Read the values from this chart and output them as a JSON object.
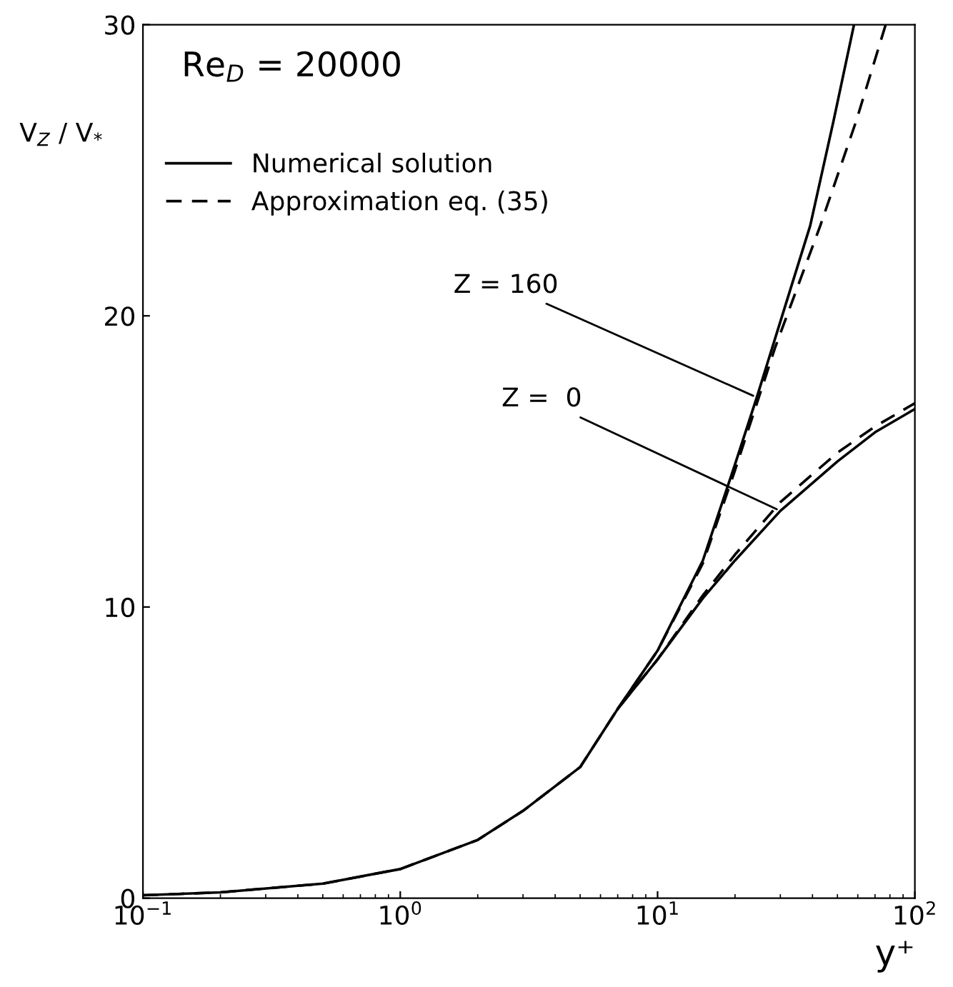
{
  "chart_data": {
    "type": "line",
    "log": "x",
    "xlim": [
      0.1,
      100
    ],
    "ylim": [
      0,
      30
    ],
    "xticks": [
      {
        "value": 0.1,
        "label": "10$^{−1}$"
      },
      {
        "value": 1,
        "label": "10$^{0}$"
      },
      {
        "value": 10,
        "label": "10$^{1}$"
      },
      {
        "value": 100,
        "label": "10$^{2}$"
      }
    ],
    "yticks": [
      0,
      10,
      20,
      30
    ],
    "xlabel": "y⁺",
    "ylabel": "V$_{Z}$ / V$_{*}$",
    "grid": false,
    "legend": "top left",
    "series": [
      {
        "name": "Numerical solution",
        "color": "#000000",
        "line_style": "solid",
        "x": [
          0.1,
          0.2,
          0.5,
          1,
          2,
          3,
          5,
          7,
          10,
          15,
          20,
          30,
          50,
          70,
          100
        ],
        "values": [
          0.1,
          0.2,
          0.5,
          1.0,
          2.0,
          3.0,
          4.5,
          6.5,
          8.2,
          10.3,
          11.6,
          13.3,
          15.0,
          16.0,
          16.8
        ]
      },
      {
        "name": "Approximation eq. (35)",
        "color": "#000000",
        "line_style": "dashed",
        "x": [
          0.1,
          0.2,
          0.5,
          1,
          2,
          3,
          5,
          7,
          10,
          15,
          20,
          30,
          50,
          70,
          100
        ],
        "values": [
          0.1,
          0.2,
          0.5,
          1.0,
          2.0,
          3.0,
          4.5,
          6.5,
          8.2,
          10.4,
          11.8,
          13.6,
          15.3,
          16.2,
          17.0
        ]
      },
      {
        "color": "#000000",
        "line_style": "solid",
        "x": [
          7,
          10,
          15,
          20,
          24.3,
          30,
          39.2,
          48.3,
          58
        ],
        "values": [
          6.5,
          8.5,
          11.6,
          14.9,
          17.2,
          19.8,
          23.1,
          26.7,
          30
        ]
      },
      {
        "color": "#000000",
        "line_style": "dashed",
        "x": [
          7,
          10,
          15,
          20,
          28.6,
          42.9,
          59.2,
          77
        ],
        "values": [
          6.5,
          8.5,
          11.5,
          14.7,
          18.9,
          23.1,
          26.7,
          30
        ]
      }
    ],
    "annotations": [
      "Re$_{D}$ = 20000",
      {
        "text": "Z = 160",
        "x": 24.3,
        "y": 17.2
      },
      {
        "text": "Z =  0",
        "x": 30,
        "y": 13.3
      }
    ]
  }
}
